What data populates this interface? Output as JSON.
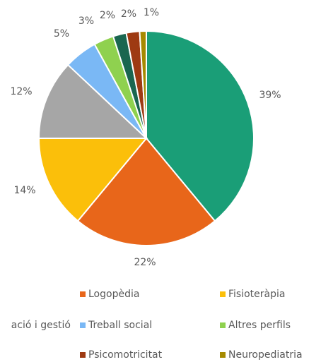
{
  "chart_data": {
    "type": "pie",
    "categories": [
      null,
      "Logopèdia",
      "Fisioteràpia",
      "ació i gestió",
      "Treball social",
      "Altres perfils",
      null,
      "Psicomotricitat",
      "Neuropediatria"
    ],
    "values": [
      39,
      22,
      14,
      12,
      5,
      3,
      2,
      2,
      1
    ],
    "value_labels": [
      "39%",
      "22%",
      "14%",
      "12%",
      "5%",
      "3%",
      "2%",
      "2%",
      "1%"
    ],
    "colors": [
      "#1a9e77",
      "#e8661a",
      "#fbbf0a",
      "#a6a6a6",
      "#7ab8f5",
      "#8fd14f",
      "#1a6650",
      "#9e3a12",
      "#a68a00"
    ],
    "legend": "bottom"
  }
}
